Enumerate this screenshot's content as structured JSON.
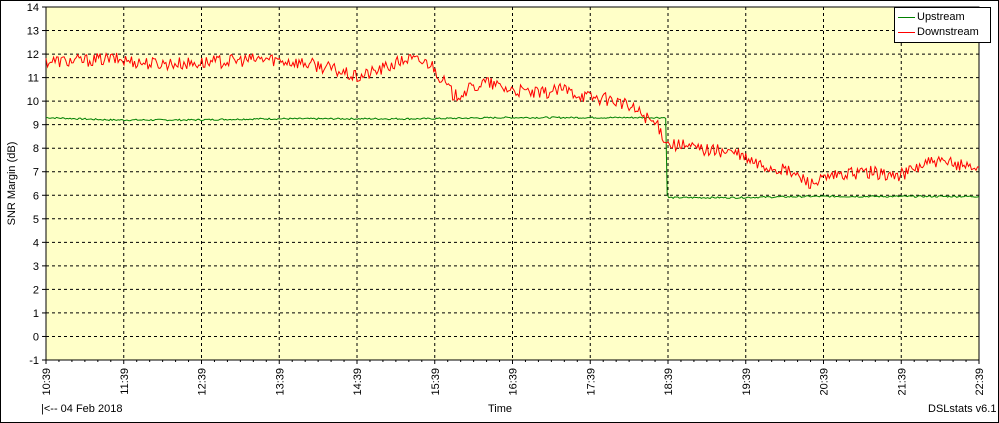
{
  "chart_data": {
    "type": "line",
    "ylabel": "SNR Margin (dB)",
    "xlabel": "Time",
    "ylim": [
      -1,
      14
    ],
    "yticks": [
      -1,
      0,
      1,
      2,
      3,
      4,
      5,
      6,
      7,
      8,
      9,
      10,
      11,
      12,
      13,
      14
    ],
    "x_tick_labels": [
      "10:39",
      "11:39",
      "12:39",
      "13:39",
      "14:39",
      "15:39",
      "16:39",
      "17:39",
      "18:39",
      "19:39",
      "20:39",
      "21:39",
      "22:39"
    ],
    "x_range_hours": [
      10.65,
      22.65
    ],
    "grid": true,
    "legend_position": "top-right",
    "background_color": "#ffffc8",
    "series": [
      {
        "name": "Upstream",
        "color": "#008000",
        "x": [
          10.65,
          11.5,
          12.5,
          13.5,
          14.5,
          15.5,
          16.5,
          17.5,
          18.3,
          18.62,
          18.64,
          18.66,
          19.5,
          20.5,
          21.5,
          22.65
        ],
        "y": [
          9.3,
          9.2,
          9.2,
          9.25,
          9.25,
          9.25,
          9.3,
          9.3,
          9.3,
          9.3,
          6.0,
          5.9,
          5.9,
          5.95,
          5.95,
          5.95
        ]
      },
      {
        "name": "Downstream",
        "color": "#ff0000",
        "x": [
          10.65,
          11.0,
          11.5,
          12.0,
          12.5,
          13.0,
          13.5,
          14.0,
          14.3,
          14.65,
          15.0,
          15.3,
          15.6,
          15.9,
          16.3,
          16.6,
          17.0,
          17.3,
          17.6,
          18.0,
          18.3,
          18.5,
          18.65,
          19.0,
          19.5,
          19.8,
          20.2,
          20.5,
          20.8,
          21.2,
          21.6,
          22.0,
          22.4,
          22.65
        ],
        "y": [
          11.7,
          11.7,
          11.8,
          11.6,
          11.6,
          11.7,
          11.8,
          11.6,
          11.4,
          11.0,
          11.4,
          11.8,
          11.6,
          10.2,
          10.8,
          10.5,
          10.3,
          10.5,
          10.2,
          10.0,
          9.5,
          9.0,
          8.2,
          8.0,
          7.8,
          7.3,
          7.0,
          6.5,
          6.8,
          7.0,
          6.8,
          7.4,
          7.3,
          7.2
        ]
      }
    ],
    "footer_left": "|<-- 04 Feb 2018",
    "footer_right": "DSLstats v6.1"
  }
}
